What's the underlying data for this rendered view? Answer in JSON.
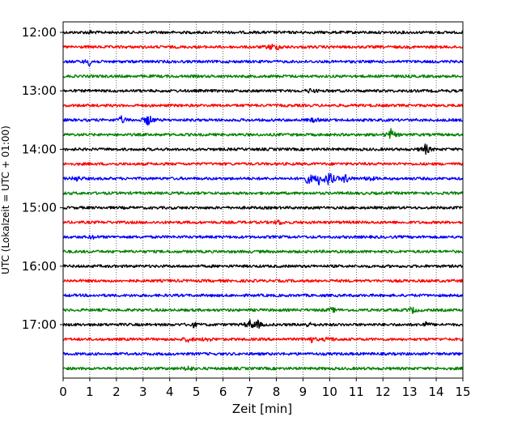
{
  "chart_data": {
    "type": "line",
    "title": "",
    "xlabel": "Zeit  [min]",
    "ylabel": "UTC (Lokalzeit = UTC + 01:00)",
    "xlim": [
      0,
      15
    ],
    "x_ticks": [
      0,
      1,
      2,
      3,
      4,
      5,
      6,
      7,
      8,
      9,
      10,
      11,
      12,
      13,
      14,
      15
    ],
    "y_ticks": [
      {
        "label": "12:00",
        "row": 0
      },
      {
        "label": "13:00",
        "row": 4
      },
      {
        "label": "14:00",
        "row": 8
      },
      {
        "label": "15:00",
        "row": 12
      },
      {
        "label": "16:00",
        "row": 16
      },
      {
        "label": "17:00",
        "row": 20
      }
    ],
    "grid": "vertical dotted",
    "color_cycle": [
      "#000000",
      "#ff0000",
      "#0000ff",
      "#008000"
    ],
    "traces_per_hour": 4,
    "minutes_per_trace": 15,
    "start_time": "12:00",
    "end_time": "18:00",
    "traces": [
      {
        "start": "12:00",
        "events": [
          {
            "t": 1.0,
            "a": 0.2
          }
        ]
      },
      {
        "start": "12:15",
        "events": [
          {
            "t": 7.8,
            "a": 0.45
          },
          {
            "t": 8.1,
            "a": 0.35
          }
        ]
      },
      {
        "start": "12:30",
        "events": [
          {
            "t": 1.0,
            "a": 0.7
          }
        ]
      },
      {
        "start": "12:45",
        "events": []
      },
      {
        "start": "13:00",
        "events": [
          {
            "t": 9.3,
            "a": 0.35
          }
        ]
      },
      {
        "start": "13:15",
        "events": []
      },
      {
        "start": "13:30",
        "events": [
          {
            "t": 2.2,
            "a": 0.6
          },
          {
            "t": 3.2,
            "a": 1.0
          },
          {
            "t": 9.4,
            "a": 0.3
          }
        ]
      },
      {
        "start": "13:45",
        "events": [
          {
            "t": 12.3,
            "a": 0.85
          }
        ]
      },
      {
        "start": "14:00",
        "events": [
          {
            "t": 13.6,
            "a": 0.9
          }
        ]
      },
      {
        "start": "14:15",
        "events": []
      },
      {
        "start": "14:30",
        "events": [
          {
            "t": 0.5,
            "a": 0.4
          },
          {
            "t": 9.2,
            "a": 0.9
          },
          {
            "t": 9.6,
            "a": 1.0
          },
          {
            "t": 10.0,
            "a": 1.4
          },
          {
            "t": 10.6,
            "a": 0.8
          },
          {
            "t": 11.5,
            "a": 0.4
          }
        ]
      },
      {
        "start": "14:45",
        "events": []
      },
      {
        "start": "15:00",
        "events": []
      },
      {
        "start": "15:15",
        "events": [
          {
            "t": 8.1,
            "a": 0.4
          }
        ]
      },
      {
        "start": "15:30",
        "events": [
          {
            "t": 1.1,
            "a": 0.25
          }
        ]
      },
      {
        "start": "15:45",
        "events": []
      },
      {
        "start": "16:00",
        "events": []
      },
      {
        "start": "16:15",
        "events": []
      },
      {
        "start": "16:30",
        "events": []
      },
      {
        "start": "16:45",
        "events": [
          {
            "t": 10.1,
            "a": 0.35
          },
          {
            "t": 13.1,
            "a": 0.5
          }
        ]
      },
      {
        "start": "17:00",
        "events": [
          {
            "t": 4.9,
            "a": 0.35
          },
          {
            "t": 7.0,
            "a": 0.7
          },
          {
            "t": 7.3,
            "a": 0.6
          },
          {
            "t": 9.2,
            "a": 0.35
          },
          {
            "t": 13.6,
            "a": 0.4
          }
        ]
      },
      {
        "start": "17:15",
        "events": [
          {
            "t": 4.7,
            "a": 0.45
          },
          {
            "t": 5.4,
            "a": 0.35
          },
          {
            "t": 9.3,
            "a": 0.5
          },
          {
            "t": 10.0,
            "a": 0.4
          }
        ]
      },
      {
        "start": "17:30",
        "events": []
      },
      {
        "start": "17:45",
        "events": [
          {
            "t": 4.7,
            "a": 0.45
          }
        ]
      }
    ]
  }
}
